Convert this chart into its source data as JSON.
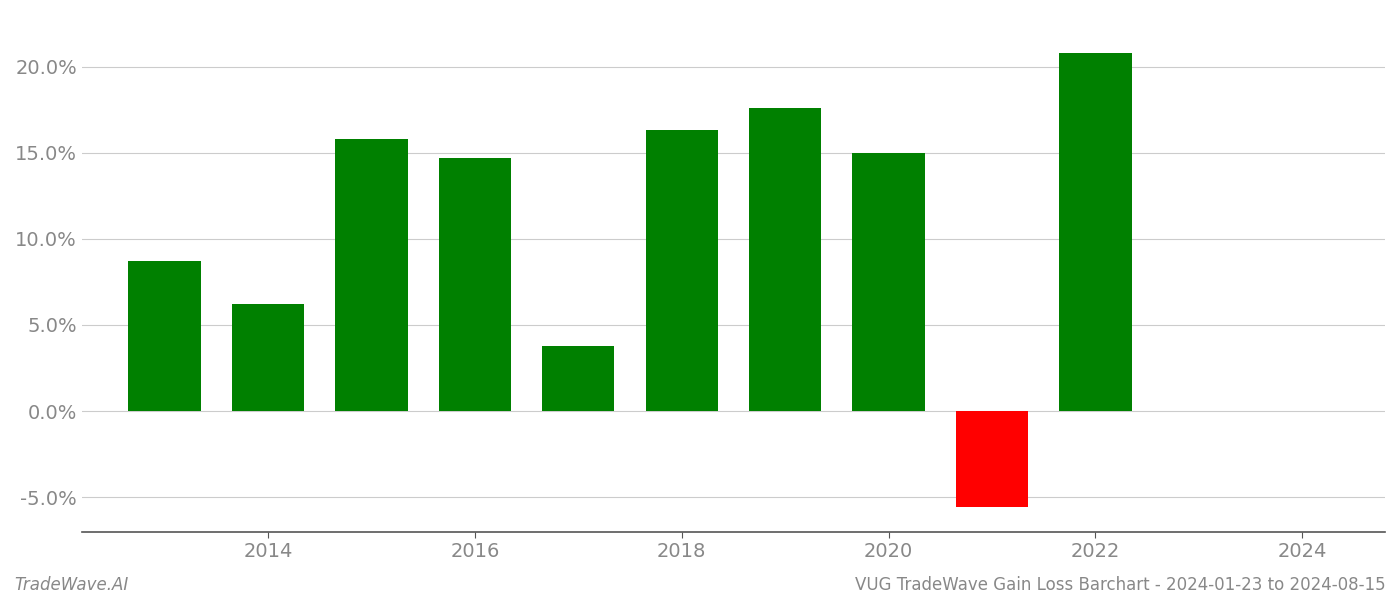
{
  "years": [
    2013,
    2014,
    2015,
    2016,
    2017,
    2018,
    2019,
    2020,
    2021,
    2022,
    2023
  ],
  "values": [
    0.087,
    0.062,
    0.158,
    0.147,
    0.038,
    0.163,
    0.176,
    0.15,
    -0.056,
    0.208,
    0.0
  ],
  "colors": [
    "#008000",
    "#008000",
    "#008000",
    "#008000",
    "#008000",
    "#008000",
    "#008000",
    "#008000",
    "#ff0000",
    "#008000",
    "#008000"
  ],
  "ylim": [
    -0.07,
    0.23
  ],
  "yticks": [
    -0.05,
    0.0,
    0.05,
    0.1,
    0.15,
    0.2
  ],
  "xticks": [
    2014,
    2016,
    2018,
    2020,
    2022,
    2024
  ],
  "xlim": [
    2012.2,
    2024.8
  ],
  "xlabel": "",
  "ylabel": "",
  "title": "",
  "footer_left": "TradeWave.AI",
  "footer_right": "VUG TradeWave Gain Loss Barchart - 2024-01-23 to 2024-08-15",
  "bar_width": 0.7,
  "background_color": "#ffffff",
  "grid_color": "#cccccc",
  "axis_color": "#555555",
  "tick_label_color": "#888888",
  "footer_fontsize": 12,
  "tick_fontsize": 14
}
